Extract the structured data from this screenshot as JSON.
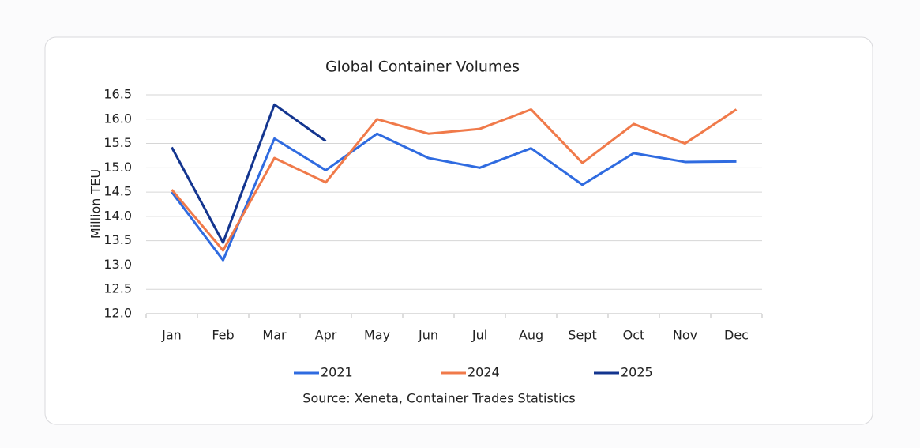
{
  "chart_data": {
    "type": "line",
    "title": "Global Container Volumes",
    "y_label": "Million TEU",
    "source": "Source: Xeneta, Container Trades Statistics",
    "categories": [
      "Jan",
      "Feb",
      "Mar",
      "Apr",
      "May",
      "Jun",
      "Jul",
      "Aug",
      "Sept",
      "Oct",
      "Nov",
      "Dec"
    ],
    "series": [
      {
        "name": "2021",
        "color": "#2f6be0",
        "values": [
          14.5,
          13.1,
          15.6,
          14.95,
          15.7,
          15.2,
          15.0,
          15.4,
          14.65,
          15.3,
          15.12,
          15.13
        ]
      },
      {
        "name": "2024",
        "color": "#f07a4a",
        "values": [
          14.55,
          13.3,
          15.2,
          14.7,
          16.0,
          15.7,
          15.8,
          16.2,
          15.1,
          15.9,
          15.5,
          16.2
        ]
      },
      {
        "name": "2025",
        "color": "#13358f",
        "values": [
          15.42,
          13.46,
          16.3,
          15.55,
          null,
          null,
          null,
          null,
          null,
          null,
          null,
          null
        ]
      }
    ],
    "ylim": [
      12,
      16.5
    ],
    "yticks": [
      {
        "value": 12,
        "label": "12.0"
      },
      12.5,
      {
        "value": 13,
        "label": "13.0"
      },
      13.5,
      {
        "value": 14,
        "label": "14.0"
      },
      14.5,
      {
        "value": 15,
        "label": "15.0"
      },
      15.5,
      {
        "value": 16,
        "label": "16.0"
      },
      16.5
    ],
    "grid": true
  }
}
